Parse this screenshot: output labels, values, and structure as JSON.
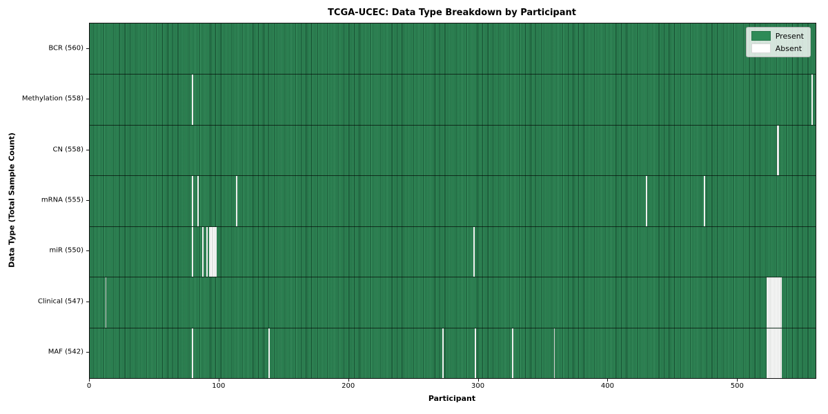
{
  "figure": {
    "title": "TCGA-UCEC: Data Type Breakdown by Participant",
    "xlabel": "Participant",
    "ylabel": "Data Type (Total Sample Count)"
  },
  "chart_data": {
    "type": "heatmap",
    "title": "TCGA-UCEC: Data Type Breakdown by Participant",
    "xlabel": "Participant",
    "ylabel": "Data Type (Total Sample Count)",
    "x_ticks": [
      0,
      100,
      200,
      300,
      400,
      500
    ],
    "xlim": [
      0,
      560
    ],
    "n_participants": 560,
    "grid": false,
    "legend_position": "upper right",
    "colors": {
      "present": "#2e8b57",
      "present_edge": "#1d5c39",
      "absent": "#ffffff",
      "absent_edge": "#c2c6c2",
      "row_separator": "#000000"
    },
    "legend": [
      {
        "label": "Present",
        "color": "#2e8b57"
      },
      {
        "label": "Absent",
        "color": "#ffffff"
      }
    ],
    "rows": [
      {
        "key": "bcr",
        "label": "BCR (560)",
        "present_count": 560,
        "absent_count": 0,
        "absent_participants": []
      },
      {
        "key": "methylation",
        "label": "Methylation (558)",
        "present_count": 558,
        "absent_count": 2,
        "absent_participants": [
          79,
          557
        ]
      },
      {
        "key": "cn",
        "label": "CN (558)",
        "present_count": 558,
        "absent_count": 2,
        "absent_participants": [
          530,
          531
        ]
      },
      {
        "key": "mrna",
        "label": "mRNA (555)",
        "present_count": 555,
        "absent_count": 5,
        "absent_participants": [
          79,
          83,
          113,
          429,
          474
        ]
      },
      {
        "key": "mir",
        "label": "miR (550)",
        "present_count": 550,
        "absent_count": 10,
        "absent_participants": [
          79,
          87,
          90,
          92,
          93,
          94,
          95,
          96,
          97,
          296
        ]
      },
      {
        "key": "clinical",
        "label": "Clinical (547)",
        "present_count": 547,
        "absent_count": 13,
        "absent_participants": [
          12,
          522,
          523,
          524,
          525,
          526,
          527,
          528,
          529,
          530,
          531,
          532,
          533
        ]
      },
      {
        "key": "maf",
        "label": "MAF (542)",
        "present_count": 542,
        "absent_count": 18,
        "absent_participants": [
          79,
          138,
          272,
          297,
          326,
          358,
          522,
          523,
          524,
          525,
          526,
          527,
          528,
          529,
          530,
          531,
          532,
          533
        ]
      }
    ]
  }
}
